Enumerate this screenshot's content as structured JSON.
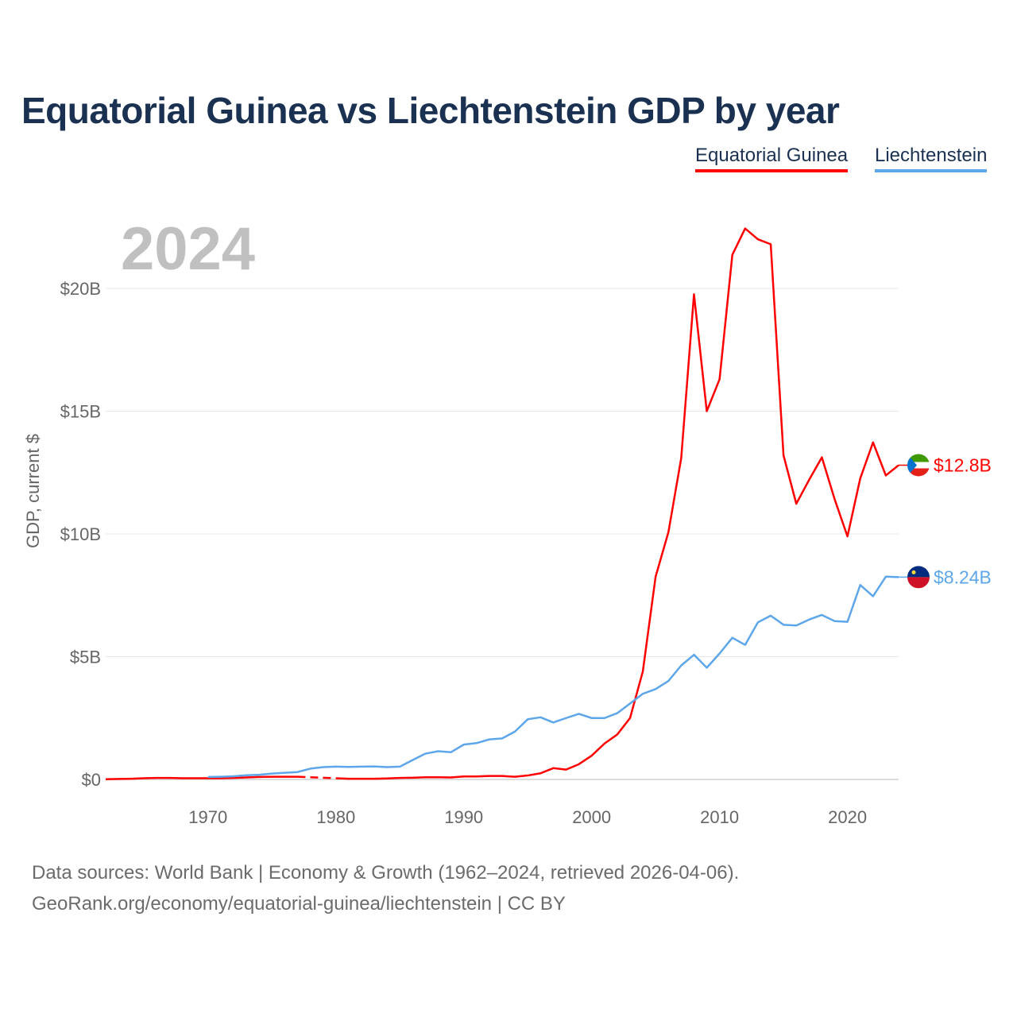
{
  "chart_data": {
    "type": "line",
    "title": "Equatorial Guinea vs Liechtenstein GDP by year",
    "ylabel": "GDP, current $",
    "xlabel": "",
    "current_year_label": "2024",
    "xlim": [
      1962,
      2024
    ],
    "ylim": [
      0,
      22.8
    ],
    "y_ticks": [
      {
        "v": 0,
        "label": "$0"
      },
      {
        "v": 5,
        "label": "$5B"
      },
      {
        "v": 10,
        "label": "$10B"
      },
      {
        "v": 15,
        "label": "$15B"
      },
      {
        "v": 20,
        "label": "$20B"
      }
    ],
    "x_ticks": [
      {
        "v": 1970,
        "label": "1970"
      },
      {
        "v": 1980,
        "label": "1980"
      },
      {
        "v": 1990,
        "label": "1990"
      },
      {
        "v": 2000,
        "label": "2000"
      },
      {
        "v": 2010,
        "label": "2010"
      },
      {
        "v": 2020,
        "label": "2020"
      }
    ],
    "grid": true,
    "legend_placement": "top-right",
    "units": "billions USD",
    "series": [
      {
        "name": "Equatorial Guinea",
        "color": "#ff0000",
        "end_label": "$12.8B",
        "start_year": 1962,
        "values": [
          0.01,
          0.02,
          0.03,
          0.05,
          0.06,
          0.06,
          0.05,
          0.05,
          0.05,
          0.05,
          0.06,
          0.08,
          0.1,
          0.11,
          0.11,
          0.11,
          null,
          null,
          0.05,
          0.03,
          0.03,
          0.03,
          0.04,
          0.06,
          0.07,
          0.09,
          0.09,
          0.08,
          0.12,
          0.12,
          0.14,
          0.14,
          0.11,
          0.16,
          0.25,
          0.46,
          0.4,
          0.62,
          0.97,
          1.46,
          1.83,
          2.5,
          4.4,
          8.26,
          10.07,
          13.08,
          19.76,
          15.0,
          16.3,
          21.37,
          22.44,
          22.0,
          21.8,
          13.2,
          11.23,
          12.2,
          13.12,
          11.41,
          9.9,
          12.26,
          13.73,
          12.38,
          12.8
        ]
      },
      {
        "name": "Liechtenstein",
        "color": "#5ea6ea",
        "end_label": "$8.24B",
        "start_year": 1970,
        "values": [
          0.1,
          0.11,
          0.13,
          0.17,
          0.19,
          0.24,
          0.27,
          0.3,
          0.44,
          0.5,
          0.52,
          0.51,
          0.52,
          0.53,
          0.5,
          0.52,
          0.79,
          1.05,
          1.15,
          1.11,
          1.42,
          1.48,
          1.63,
          1.67,
          1.95,
          2.45,
          2.53,
          2.32,
          2.5,
          2.67,
          2.5,
          2.5,
          2.7,
          3.09,
          3.49,
          3.68,
          4.01,
          4.64,
          5.08,
          4.55,
          5.13,
          5.77,
          5.48,
          6.4,
          6.67,
          6.3,
          6.27,
          6.51,
          6.7,
          6.45,
          6.42,
          7.92,
          7.46,
          8.26,
          8.24
        ]
      }
    ]
  },
  "footer": {
    "line1": "Data sources: World Bank | Economy & Growth (1962–2024, retrieved 2026-04-06).",
    "line2": "GeoRank.org/economy/equatorial-guinea/liechtenstein | CC BY"
  }
}
